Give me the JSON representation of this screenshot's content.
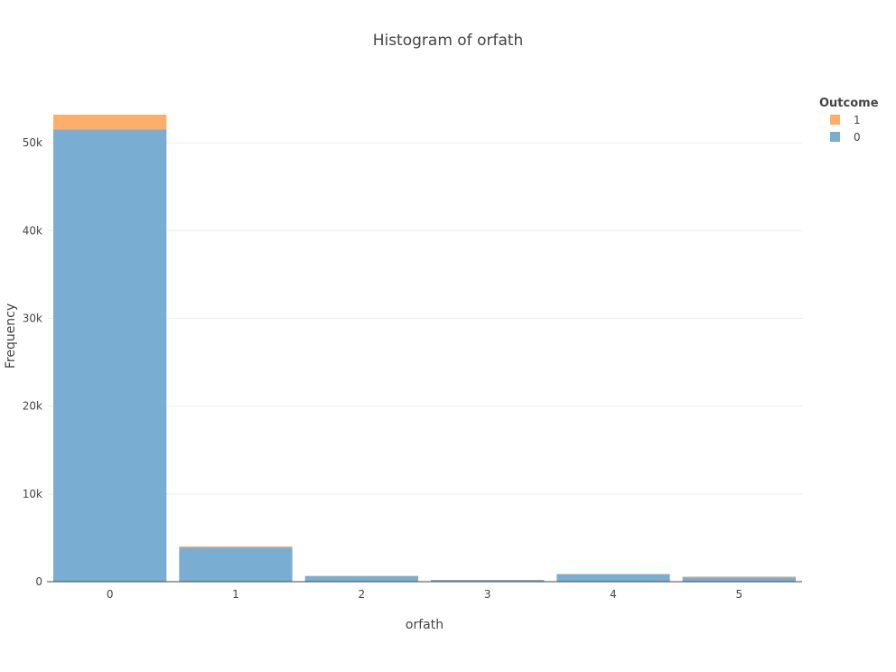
{
  "chart_data": {
    "type": "bar",
    "stacked": true,
    "title": "Histogram of orfath",
    "xlabel": "orfath",
    "ylabel": "Frequency",
    "categories": [
      "0",
      "1",
      "2",
      "3",
      "4",
      "5"
    ],
    "series": [
      {
        "name": "0",
        "color": "#7aadd2",
        "values": [
          51500,
          3900,
          650,
          200,
          850,
          500
        ]
      },
      {
        "name": "1",
        "color": "#fdae6b",
        "values": [
          1700,
          120,
          20,
          10,
          40,
          80
        ]
      }
    ],
    "ylim": [
      0,
      53200
    ],
    "yticks": [
      {
        "value": 0,
        "label": "0"
      },
      {
        "value": 10000,
        "label": "10k"
      },
      {
        "value": 20000,
        "label": "20k"
      },
      {
        "value": 30000,
        "label": "30k"
      },
      {
        "value": 40000,
        "label": "40k"
      },
      {
        "value": 50000,
        "label": "50k"
      }
    ],
    "grid": true,
    "legend": {
      "title": "Outcome",
      "placement": "top-right",
      "order": [
        "1",
        "0"
      ]
    }
  }
}
